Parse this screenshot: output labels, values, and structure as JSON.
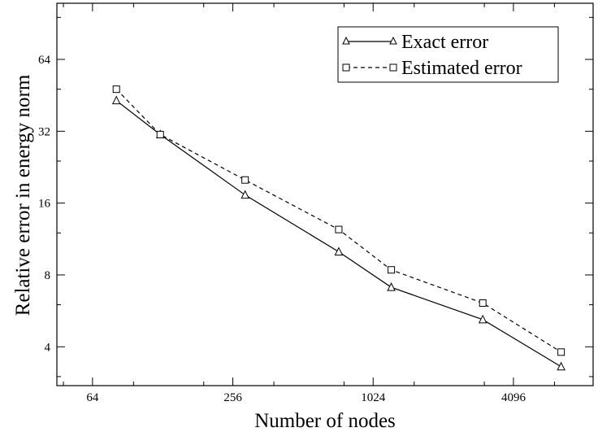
{
  "chart_data": {
    "type": "line",
    "xlabel": "Number of nodes",
    "ylabel": "Relative error in energy norm",
    "x_scale": "log2",
    "y_scale": "log2",
    "xlim": [
      45,
      9000
    ],
    "ylim": [
      2.75,
      110
    ],
    "x_ticks": [
      64,
      256,
      1024,
      4096
    ],
    "y_ticks": [
      4,
      8,
      16,
      32,
      64
    ],
    "grid": false,
    "legend_position": "top-right",
    "series": [
      {
        "name": "Exact error",
        "marker": "triangle",
        "line_style": "solid",
        "color": "#000000",
        "x": [
          81,
          125,
          289,
          729,
          1225,
          3025,
          6561
        ],
        "y": [
          43,
          31,
          17.3,
          10,
          7.1,
          5.2,
          3.3
        ]
      },
      {
        "name": "Estimated error",
        "marker": "square",
        "line_style": "dashed",
        "color": "#000000",
        "x": [
          81,
          125,
          289,
          729,
          1225,
          3025,
          6561
        ],
        "y": [
          48,
          31,
          20,
          12.4,
          8.4,
          6.1,
          3.8
        ]
      }
    ]
  }
}
